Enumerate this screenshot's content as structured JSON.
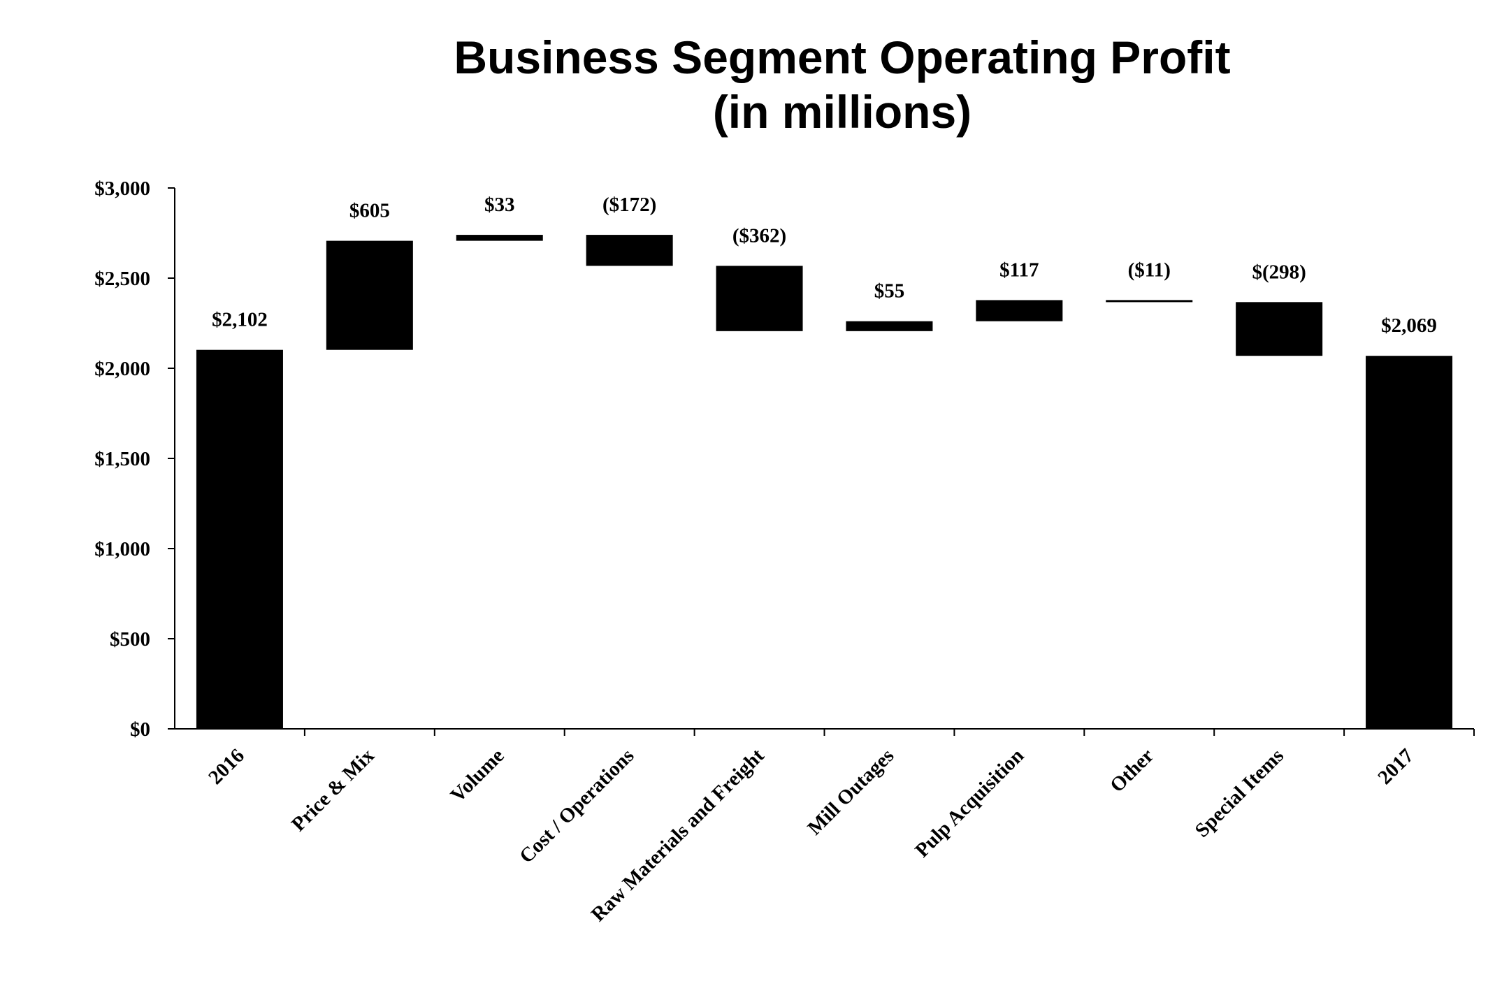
{
  "chart_data": {
    "type": "waterfall",
    "title_lines": [
      "Business Segment Operating Profit",
      "(in millions)"
    ],
    "xlabel": "",
    "ylabel": "",
    "ylim": [
      0,
      3000
    ],
    "y_ticks": [
      {
        "value": 0,
        "label": "$0"
      },
      {
        "value": 500,
        "label": "$500"
      },
      {
        "value": 1000,
        "label": "$1,000"
      },
      {
        "value": 1500,
        "label": "$1,500"
      },
      {
        "value": 2000,
        "label": "$2,000"
      },
      {
        "value": 2500,
        "label": "$2,500"
      },
      {
        "value": 3000,
        "label": "$3,000"
      }
    ],
    "grid": false,
    "bar_color": "#000000",
    "steps": [
      {
        "category": "2016",
        "kind": "total",
        "start": 0,
        "end": 2102,
        "label": "$2,102"
      },
      {
        "category": "Price & Mix",
        "kind": "delta",
        "start": 2102,
        "end": 2707,
        "label": "$605"
      },
      {
        "category": "Volume",
        "kind": "delta",
        "start": 2707,
        "end": 2740,
        "label": "$33"
      },
      {
        "category": "Cost / Operations",
        "kind": "delta",
        "start": 2740,
        "end": 2568,
        "label": "($172)"
      },
      {
        "category": "Raw Materials and Freight",
        "kind": "delta",
        "start": 2568,
        "end": 2206,
        "label": "($362)"
      },
      {
        "category": "Mill Outages",
        "kind": "delta",
        "start": 2206,
        "end": 2261,
        "label": "$55"
      },
      {
        "category": "Pulp Acquisition",
        "kind": "delta",
        "start": 2261,
        "end": 2378,
        "label": "$117"
      },
      {
        "category": "Other",
        "kind": "delta",
        "start": 2378,
        "end": 2367,
        "label": "($11)"
      },
      {
        "category": "Special Items",
        "kind": "delta",
        "start": 2367,
        "end": 2069,
        "label": "$(298)"
      },
      {
        "category": "2017",
        "kind": "total",
        "start": 0,
        "end": 2069,
        "label": "$2,069"
      }
    ]
  }
}
